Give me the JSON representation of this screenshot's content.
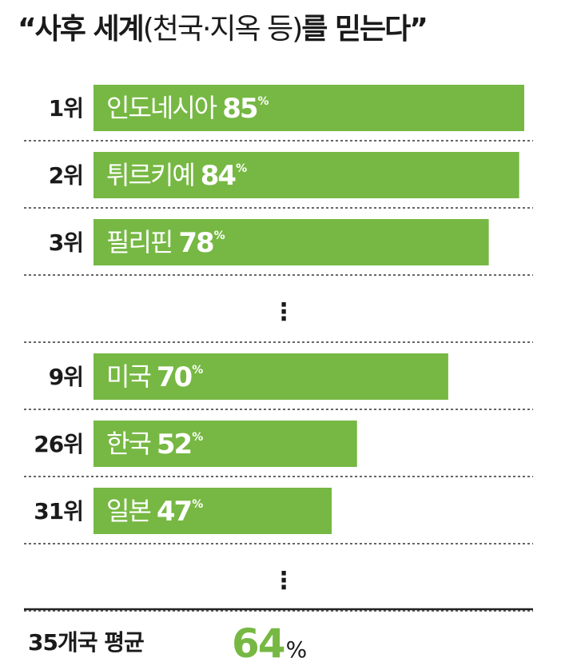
{
  "title": {
    "open_quote": "“",
    "part1": "사후 세계",
    "paren": "(천국·지옥 등)",
    "part2": "를 믿는다",
    "close_quote": "”"
  },
  "colors": {
    "bar": "#76b843",
    "bar_text": "#ffffff",
    "text": "#1a1a1a",
    "average_value": "#76b843"
  },
  "chart_data": {
    "type": "bar",
    "orientation": "horizontal",
    "unit": "%",
    "xlim": [
      0,
      85
    ],
    "grid": false,
    "rows": [
      {
        "kind": "bar",
        "rank": "1위",
        "country": "인도네시아",
        "value": 85
      },
      {
        "kind": "bar",
        "rank": "2위",
        "country": "튀르키예",
        "value": 84
      },
      {
        "kind": "bar",
        "rank": "3위",
        "country": "필리핀",
        "value": 78
      },
      {
        "kind": "gap",
        "marker": "⋮"
      },
      {
        "kind": "bar",
        "rank": "9위",
        "country": "미국",
        "value": 70
      },
      {
        "kind": "bar",
        "rank": "26위",
        "country": "한국",
        "value": 52
      },
      {
        "kind": "bar",
        "rank": "31위",
        "country": "일본",
        "value": 47
      },
      {
        "kind": "gap",
        "marker": "⋮"
      }
    ],
    "average": {
      "label": "35개국 평균",
      "value": 64,
      "unit": "%"
    }
  }
}
